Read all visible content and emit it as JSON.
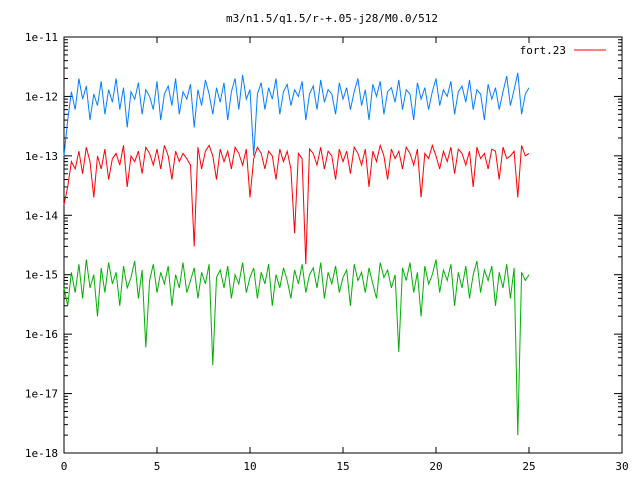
{
  "chart_data": {
    "type": "line",
    "title": "m3/n1.5/q1.5/r-+.05-j28/M0.0/512",
    "xlabel": "",
    "ylabel": "",
    "xlim": [
      0,
      30
    ],
    "ylim": [
      1e-18,
      1e-11
    ],
    "y_scale": "log",
    "grid": false,
    "legend_position": "top-right",
    "x_ticks": [
      "0",
      "5",
      "10",
      "15",
      "20",
      "25",
      "30"
    ],
    "y_ticks": [
      "1e-11",
      "1e-12",
      "1e-13",
      "1e-14",
      "1e-15",
      "1e-16",
      "1e-17",
      "1e-18"
    ],
    "y_tick_values": [
      1e-11,
      1e-12,
      1e-13,
      1e-14,
      1e-15,
      1e-16,
      1e-17,
      1e-18
    ],
    "series": [
      {
        "name": "fort.23",
        "color": "#ff0000",
        "x": [
          0.0,
          0.2,
          0.4,
          0.6,
          0.8,
          1.0,
          1.2,
          1.4,
          1.6,
          1.8,
          2.0,
          2.2,
          2.4,
          2.6,
          2.8,
          3.0,
          3.2,
          3.4,
          3.6,
          3.8,
          4.0,
          4.2,
          4.4,
          4.6,
          4.8,
          5.0,
          5.2,
          5.4,
          5.6,
          5.8,
          6.0,
          6.2,
          6.4,
          6.6,
          6.8,
          7.0,
          7.2,
          7.4,
          7.6,
          7.8,
          8.0,
          8.2,
          8.4,
          8.6,
          8.8,
          9.0,
          9.2,
          9.4,
          9.6,
          9.8,
          10.0,
          10.2,
          10.4,
          10.6,
          10.8,
          11.0,
          11.2,
          11.4,
          11.6,
          11.8,
          12.0,
          12.2,
          12.4,
          12.6,
          12.8,
          13.0,
          13.2,
          13.4,
          13.6,
          13.8,
          14.0,
          14.2,
          14.4,
          14.6,
          14.8,
          15.0,
          15.2,
          15.4,
          15.6,
          15.8,
          16.0,
          16.2,
          16.4,
          16.6,
          16.8,
          17.0,
          17.2,
          17.4,
          17.6,
          17.8,
          18.0,
          18.2,
          18.4,
          18.6,
          18.8,
          19.0,
          19.2,
          19.4,
          19.6,
          19.8,
          20.0,
          20.2,
          20.4,
          20.6,
          20.8,
          21.0,
          21.2,
          21.4,
          21.6,
          21.8,
          22.0,
          22.2,
          22.4,
          22.6,
          22.8,
          23.0,
          23.2,
          23.4,
          23.6,
          23.8,
          24.0,
          24.2,
          24.4,
          24.6,
          24.8,
          25.0
        ],
        "values": [
          1.5e-14,
          3e-14,
          8e-14,
          6e-14,
          1.2e-13,
          5e-14,
          1.4e-13,
          8e-14,
          2e-14,
          1e-13,
          6e-14,
          1.3e-13,
          4e-14,
          9e-14,
          1.1e-13,
          7e-14,
          1.5e-13,
          3e-14,
          1e-13,
          8e-14,
          1.2e-13,
          5e-14,
          1.4e-13,
          1.1e-13,
          7e-14,
          1.3e-13,
          6e-14,
          1.5e-13,
          1e-13,
          4e-14,
          1.2e-13,
          8e-14,
          1.1e-13,
          9e-14,
          7e-14,
          3e-15,
          1.4e-13,
          6e-14,
          1.2e-13,
          1.5e-13,
          1e-13,
          4e-14,
          1.3e-13,
          8e-14,
          1.2e-13,
          6e-14,
          1.4e-13,
          1.1e-13,
          7e-14,
          1.3e-13,
          2e-14,
          9e-14,
          1.4e-13,
          1.1e-13,
          6e-14,
          1.2e-13,
          1e-13,
          4e-14,
          1.3e-13,
          8e-14,
          1.2e-13,
          6e-14,
          5e-15,
          1.1e-13,
          9e-14,
          1.5e-15,
          1.3e-13,
          1.1e-13,
          7e-14,
          1.4e-13,
          6e-14,
          1.2e-13,
          1e-13,
          4e-14,
          1.3e-13,
          8e-14,
          1.2e-13,
          5e-14,
          1.4e-13,
          1.1e-13,
          7e-14,
          1.3e-13,
          3e-14,
          1.2e-13,
          8e-14,
          1.5e-13,
          1e-13,
          4e-14,
          1.3e-13,
          9e-14,
          1.2e-13,
          6e-14,
          1.4e-13,
          1.1e-13,
          7e-14,
          1.3e-13,
          2e-14,
          1.1e-13,
          9e-14,
          1.5e-13,
          1e-13,
          6e-14,
          1.2e-13,
          8e-14,
          1.4e-13,
          5e-14,
          1.3e-13,
          1.1e-13,
          7e-14,
          1.2e-13,
          3e-14,
          1.4e-13,
          9e-14,
          1.1e-13,
          6e-14,
          1.3e-13,
          1.2e-13,
          4e-14,
          1.4e-13,
          9e-14,
          1e-13,
          1.2e-13,
          2e-14,
          1.5e-13,
          1e-13,
          1.1e-13
        ]
      },
      {
        "color": "#0080ff",
        "x": [
          0.0,
          0.2,
          0.4,
          0.6,
          0.8,
          1.0,
          1.2,
          1.4,
          1.6,
          1.8,
          2.0,
          2.2,
          2.4,
          2.6,
          2.8,
          3.0,
          3.2,
          3.4,
          3.6,
          3.8,
          4.0,
          4.2,
          4.4,
          4.6,
          4.8,
          5.0,
          5.2,
          5.4,
          5.6,
          5.8,
          6.0,
          6.2,
          6.4,
          6.6,
          6.8,
          7.0,
          7.2,
          7.4,
          7.6,
          7.8,
          8.0,
          8.2,
          8.4,
          8.6,
          8.8,
          9.0,
          9.2,
          9.4,
          9.6,
          9.8,
          10.0,
          10.2,
          10.4,
          10.6,
          10.8,
          11.0,
          11.2,
          11.4,
          11.6,
          11.8,
          12.0,
          12.2,
          12.4,
          12.6,
          12.8,
          13.0,
          13.2,
          13.4,
          13.6,
          13.8,
          14.0,
          14.2,
          14.4,
          14.6,
          14.8,
          15.0,
          15.2,
          15.4,
          15.6,
          15.8,
          16.0,
          16.2,
          16.4,
          16.6,
          16.8,
          17.0,
          17.2,
          17.4,
          17.6,
          17.8,
          18.0,
          18.2,
          18.4,
          18.6,
          18.8,
          19.0,
          19.2,
          19.4,
          19.6,
          19.8,
          20.0,
          20.2,
          20.4,
          20.6,
          20.8,
          21.0,
          21.2,
          21.4,
          21.6,
          21.8,
          22.0,
          22.2,
          22.4,
          22.6,
          22.8,
          23.0,
          23.2,
          23.4,
          23.6,
          23.8,
          24.0,
          24.2,
          24.4,
          24.6,
          24.8,
          25.0
        ],
        "values": [
          1e-13,
          4e-13,
          1.2e-12,
          6e-13,
          2e-12,
          9e-13,
          1.5e-12,
          4e-13,
          1.1e-12,
          7e-13,
          1.8e-12,
          5e-13,
          1.3e-12,
          8e-13,
          2e-12,
          6e-13,
          1.4e-12,
          3e-13,
          1.2e-12,
          9e-13,
          1.7e-12,
          5e-13,
          1.3e-12,
          1e-12,
          6e-13,
          1.8e-12,
          4e-13,
          1.1e-12,
          1.5e-12,
          7e-13,
          2e-12,
          5e-13,
          1.2e-12,
          9e-13,
          1.6e-12,
          3e-13,
          1.3e-12,
          7e-13,
          1.9e-12,
          1.1e-12,
          5e-13,
          1.4e-12,
          8e-13,
          1.7e-12,
          4e-13,
          1.2e-12,
          2e-12,
          6e-13,
          2.3e-12,
          9e-13,
          1.3e-12,
          1e-13,
          1.1e-12,
          1.7e-12,
          6e-13,
          1.4e-12,
          9e-13,
          2e-12,
          5e-13,
          1.2e-12,
          1.6e-12,
          7e-13,
          1.3e-12,
          1e-12,
          1.8e-12,
          4e-13,
          1.1e-12,
          1.5e-12,
          6e-13,
          1.9e-12,
          8e-13,
          1.3e-12,
          1.1e-12,
          5e-13,
          1.7e-12,
          9e-13,
          1.4e-12,
          6e-13,
          1.2e-12,
          2e-12,
          7e-13,
          1.3e-12,
          4e-13,
          1.6e-12,
          1e-12,
          1.8e-12,
          5e-13,
          1.2e-12,
          1.4e-12,
          8e-13,
          1.9e-12,
          6e-13,
          1.3e-12,
          1.1e-12,
          4e-13,
          1.7e-12,
          9e-13,
          1.4e-12,
          6e-13,
          1.2e-12,
          2e-12,
          7e-13,
          1.3e-12,
          1e-12,
          1.8e-12,
          5e-13,
          1.2e-12,
          1.5e-12,
          8e-13,
          1.9e-12,
          6e-13,
          1.3e-12,
          1.1e-12,
          4e-13,
          1.6e-12,
          9e-13,
          1.4e-12,
          6e-13,
          1.2e-12,
          2.2e-12,
          7e-13,
          1.3e-12,
          2.5e-12,
          5e-13,
          1.1e-12,
          1.4e-12
        ]
      },
      {
        "color": "#00b000",
        "x": [
          0.0,
          0.2,
          0.4,
          0.6,
          0.8,
          1.0,
          1.2,
          1.4,
          1.6,
          1.8,
          2.0,
          2.2,
          2.4,
          2.6,
          2.8,
          3.0,
          3.2,
          3.4,
          3.6,
          3.8,
          4.0,
          4.2,
          4.4,
          4.6,
          4.8,
          5.0,
          5.2,
          5.4,
          5.6,
          5.8,
          6.0,
          6.2,
          6.4,
          6.6,
          6.8,
          7.0,
          7.2,
          7.4,
          7.6,
          7.8,
          8.0,
          8.2,
          8.4,
          8.6,
          8.8,
          9.0,
          9.2,
          9.4,
          9.6,
          9.8,
          10.0,
          10.2,
          10.4,
          10.6,
          10.8,
          11.0,
          11.2,
          11.4,
          11.6,
          11.8,
          12.0,
          12.2,
          12.4,
          12.6,
          12.8,
          13.0,
          13.2,
          13.4,
          13.6,
          13.8,
          14.0,
          14.2,
          14.4,
          14.6,
          14.8,
          15.0,
          15.2,
          15.4,
          15.6,
          15.8,
          16.0,
          16.2,
          16.4,
          16.6,
          16.8,
          17.0,
          17.2,
          17.4,
          17.6,
          17.8,
          18.0,
          18.2,
          18.4,
          18.6,
          18.8,
          19.0,
          19.2,
          19.4,
          19.6,
          19.8,
          20.0,
          20.2,
          20.4,
          20.6,
          20.8,
          21.0,
          21.2,
          21.4,
          21.6,
          21.8,
          22.0,
          22.2,
          22.4,
          22.6,
          22.8,
          23.0,
          23.2,
          23.4,
          23.6,
          23.8,
          24.0,
          24.2,
          24.4,
          24.6,
          24.8,
          25.0
        ],
        "values": [
          6e-16,
          3e-16,
          1.1e-15,
          5e-16,
          1.5e-15,
          4e-16,
          1.8e-15,
          6e-16,
          1e-15,
          2e-16,
          1.3e-15,
          5e-16,
          1.6e-15,
          7e-16,
          1.1e-15,
          3e-16,
          1.4e-15,
          6e-16,
          9e-16,
          1.7e-15,
          4e-16,
          1.2e-15,
          6e-17,
          8e-16,
          1.5e-15,
          5e-16,
          1.1e-15,
          7e-16,
          1.4e-15,
          3e-16,
          1e-15,
          6e-16,
          1.6e-15,
          5e-16,
          8e-16,
          1.3e-15,
          4e-16,
          1.1e-15,
          7e-16,
          1.5e-15,
          3e-17,
          9e-16,
          1.2e-15,
          6e-16,
          1.4e-15,
          4e-16,
          1e-15,
          7e-16,
          1.6e-15,
          5e-16,
          9e-16,
          1.3e-15,
          4e-16,
          1.1e-15,
          7e-16,
          1.5e-15,
          3e-16,
          1e-15,
          6e-16,
          1.3e-15,
          8e-16,
          4e-16,
          1.2e-15,
          7e-16,
          1.5e-15,
          5e-16,
          1e-15,
          1.3e-15,
          6e-16,
          1.6e-15,
          4e-16,
          1.1e-15,
          7e-16,
          1.4e-15,
          5e-16,
          9e-16,
          1.2e-15,
          3e-16,
          1.5e-15,
          8e-16,
          1.1e-15,
          5e-16,
          1.3e-15,
          7e-16,
          4e-16,
          1.6e-15,
          9e-16,
          1.2e-15,
          6e-16,
          1e-15,
          5e-17,
          1.3e-15,
          8e-16,
          1.6e-15,
          5e-16,
          1.1e-15,
          2e-16,
          1.4e-15,
          7e-16,
          1e-15,
          1.8e-15,
          5e-16,
          1.2e-15,
          8e-16,
          1.5e-15,
          3e-16,
          1.1e-15,
          6e-16,
          1.4e-15,
          4e-16,
          1e-15,
          1.7e-15,
          5e-16,
          1.2e-15,
          8e-16,
          1.4e-15,
          3e-16,
          1.1e-15,
          6e-16,
          1.5e-15,
          4e-16,
          1.3e-15,
          2e-18,
          1.1e-15,
          8e-16,
          1e-15
        ]
      }
    ]
  }
}
